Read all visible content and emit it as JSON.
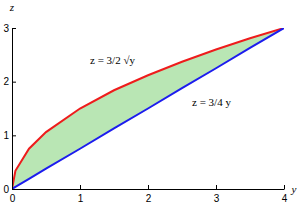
{
  "chart_data": {
    "type": "area",
    "xlabel": "y",
    "ylabel": "z",
    "x": [
      0,
      0.05,
      0.25,
      0.5,
      1,
      1.5,
      2,
      2.5,
      3,
      3.5,
      4
    ],
    "series": [
      {
        "name": "z = 3/2 √y",
        "color": "#ee1c1c",
        "values": [
          0,
          0.34,
          0.75,
          1.06,
          1.5,
          1.84,
          2.12,
          2.37,
          2.6,
          2.81,
          3
        ]
      },
      {
        "name": "z = 3/4 y",
        "color": "#1c1cee",
        "values": [
          0,
          0.04,
          0.19,
          0.38,
          0.75,
          1.13,
          1.5,
          1.88,
          2.25,
          2.63,
          3
        ]
      }
    ],
    "color": "#b9e6b4",
    "xlim": [
      0,
      4
    ],
    "xticks": [
      0,
      1,
      2,
      3,
      4
    ],
    "ylim": [
      0,
      3
    ],
    "yticks": [
      0,
      1,
      2,
      3
    ],
    "grid": false
  }
}
